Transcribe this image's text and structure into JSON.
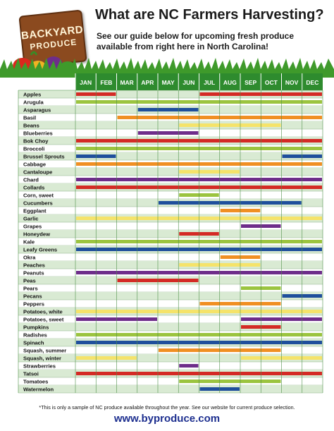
{
  "header": {
    "logo_line1": "BACKYARD",
    "logo_line2": "PRODUCE",
    "title": "What are NC Farmers Harvesting?",
    "subtitle_line1": "See our guide below for upcoming fresh produce",
    "subtitle_line2": "available from right here in North Carolina!"
  },
  "footer": {
    "note": "*This is only a sample of NC produce available throughout the year. See our website for current produce selection.",
    "website": "www.byproduce.com"
  },
  "colors": {
    "header_green": "#2e8b2e",
    "row_stripe": "#d9ead3",
    "red": "#d42a25",
    "green": "#9bc43f",
    "blue": "#1f4f9c",
    "orange": "#f08f23",
    "yellow": "#f5e36a",
    "purple": "#6e2d8a"
  },
  "chart_data": {
    "type": "table",
    "months": [
      "JAN",
      "FEB",
      "MAR",
      "APR",
      "MAY",
      "JUN",
      "JUL",
      "AUG",
      "SEP",
      "OCT",
      "NOV",
      "DEC"
    ],
    "rows": [
      {
        "name": "Apples",
        "color": "red",
        "ranges": [
          [
            1,
            2
          ],
          [
            7,
            12
          ]
        ]
      },
      {
        "name": "Arugula",
        "color": "green",
        "ranges": [
          [
            1,
            12
          ]
        ]
      },
      {
        "name": "Asparagus",
        "color": "blue",
        "ranges": [
          [
            4,
            6
          ]
        ]
      },
      {
        "name": "Basil",
        "color": "orange",
        "ranges": [
          [
            3,
            12
          ]
        ]
      },
      {
        "name": "Beans",
        "color": "yellow",
        "ranges": [
          [
            6,
            10
          ]
        ]
      },
      {
        "name": "Blueberries",
        "color": "purple",
        "ranges": [
          [
            4,
            6
          ]
        ]
      },
      {
        "name": "Bok Choy",
        "color": "red",
        "ranges": [
          [
            1,
            12
          ]
        ]
      },
      {
        "name": "Broccoli",
        "color": "green",
        "ranges": [
          [
            1,
            12
          ]
        ]
      },
      {
        "name": "Brussel Sprouts",
        "color": "blue",
        "ranges": [
          [
            1,
            2
          ],
          [
            11,
            12
          ]
        ]
      },
      {
        "name": "Cabbage",
        "color": "orange",
        "ranges": [
          [
            1,
            12
          ]
        ]
      },
      {
        "name": "Cantaloupe",
        "color": "yellow",
        "ranges": [
          [
            6,
            8
          ]
        ]
      },
      {
        "name": "Chard",
        "color": "purple",
        "ranges": [
          [
            1,
            12
          ]
        ]
      },
      {
        "name": "Collards",
        "color": "red",
        "ranges": [
          [
            1,
            12
          ]
        ]
      },
      {
        "name": "Corn, sweet",
        "color": "green",
        "ranges": [
          [
            6,
            7
          ]
        ]
      },
      {
        "name": "Cucumbers",
        "color": "blue",
        "ranges": [
          [
            5,
            11
          ]
        ]
      },
      {
        "name": "Eggplant",
        "color": "orange",
        "ranges": [
          [
            8,
            9
          ]
        ]
      },
      {
        "name": "Garlic",
        "color": "yellow",
        "ranges": [
          [
            1,
            12
          ]
        ]
      },
      {
        "name": "Grapes",
        "color": "purple",
        "ranges": [
          [
            9,
            10
          ]
        ]
      },
      {
        "name": "Honeydew",
        "color": "red",
        "ranges": [
          [
            6,
            7
          ]
        ]
      },
      {
        "name": "Kale",
        "color": "green",
        "ranges": [
          [
            1,
            12
          ]
        ]
      },
      {
        "name": "Leafy Greens",
        "color": "blue",
        "ranges": [
          [
            1,
            12
          ]
        ]
      },
      {
        "name": "Okra",
        "color": "orange",
        "ranges": [
          [
            8,
            9
          ]
        ]
      },
      {
        "name": "Peaches",
        "color": "yellow",
        "ranges": [
          [
            6,
            9
          ]
        ]
      },
      {
        "name": "Peanuts",
        "color": "purple",
        "ranges": [
          [
            1,
            12
          ]
        ]
      },
      {
        "name": "Peas",
        "color": "red",
        "ranges": [
          [
            3,
            6
          ]
        ]
      },
      {
        "name": "Pears",
        "color": "green",
        "ranges": [
          [
            9,
            10
          ]
        ]
      },
      {
        "name": "Pecans",
        "color": "blue",
        "ranges": [
          [
            11,
            12
          ]
        ]
      },
      {
        "name": "Peppers",
        "color": "orange",
        "ranges": [
          [
            7,
            10
          ]
        ]
      },
      {
        "name": "Potatoes, white",
        "color": "yellow",
        "ranges": [
          [
            1,
            12
          ]
        ]
      },
      {
        "name": "Potatoes, sweet",
        "color": "purple",
        "ranges": [
          [
            1,
            4
          ],
          [
            9,
            12
          ]
        ]
      },
      {
        "name": "Pumpkins",
        "color": "red",
        "ranges": [
          [
            9,
            10
          ]
        ]
      },
      {
        "name": "Radishes",
        "color": "green",
        "ranges": [
          [
            1,
            12
          ]
        ]
      },
      {
        "name": "Spinach",
        "color": "blue",
        "ranges": [
          [
            1,
            12
          ]
        ]
      },
      {
        "name": "Squash, summer",
        "color": "orange",
        "ranges": [
          [
            5,
            10
          ]
        ]
      },
      {
        "name": "Squash, winter",
        "color": "yellow",
        "ranges": [
          [
            1,
            3
          ],
          [
            9,
            12
          ]
        ]
      },
      {
        "name": "Strawberries",
        "color": "purple",
        "ranges": [
          [
            6,
            6
          ]
        ]
      },
      {
        "name": "Tatsoi",
        "color": "red",
        "ranges": [
          [
            1,
            12
          ]
        ]
      },
      {
        "name": "Tomatoes",
        "color": "green",
        "ranges": [
          [
            6,
            10
          ]
        ]
      },
      {
        "name": "Watermelon",
        "color": "blue",
        "ranges": [
          [
            7,
            8
          ]
        ]
      }
    ]
  }
}
